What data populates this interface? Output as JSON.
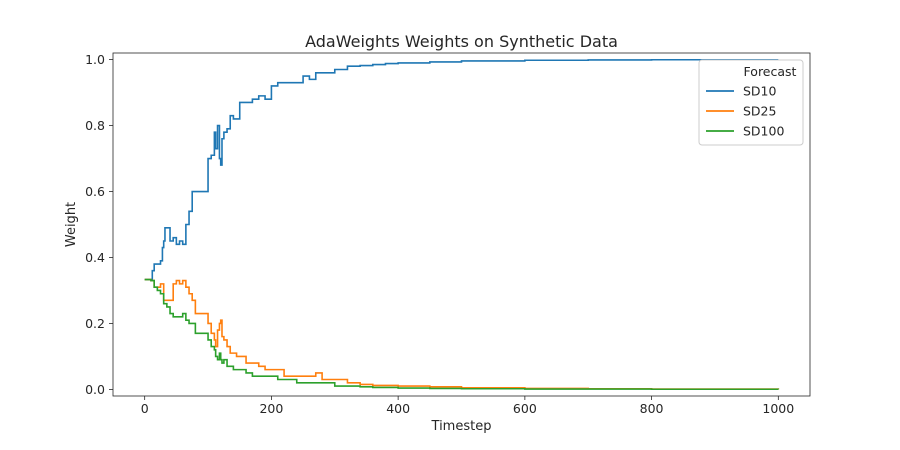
{
  "chart_data": {
    "type": "line",
    "title": "AdaWeights Weights on Synthetic Data",
    "xlabel": "Timestep",
    "ylabel": "Weight",
    "xlim": [
      -50,
      1050
    ],
    "ylim": [
      -0.02,
      1.02
    ],
    "x_ticks": [
      0,
      200,
      400,
      600,
      800,
      1000
    ],
    "y_ticks": [
      0.0,
      0.2,
      0.4,
      0.6,
      0.8,
      1.0
    ],
    "x_tick_labels": [
      "0",
      "200",
      "400",
      "600",
      "800",
      "1000"
    ],
    "y_tick_labels": [
      "0.0",
      "0.2",
      "0.4",
      "0.6",
      "0.8",
      "1.0"
    ],
    "grid": false,
    "legend": {
      "title": "Forecast",
      "placement": "top-right"
    },
    "series": [
      {
        "name": "SD10",
        "color": "#1f77b4",
        "x": [
          0,
          10,
          12,
          15,
          20,
          25,
          28,
          30,
          32,
          35,
          40,
          45,
          50,
          55,
          60,
          65,
          70,
          75,
          78,
          80,
          85,
          90,
          95,
          100,
          105,
          110,
          112,
          115,
          118,
          120,
          122,
          125,
          130,
          135,
          140,
          145,
          150,
          160,
          170,
          180,
          190,
          200,
          210,
          220,
          230,
          240,
          250,
          260,
          270,
          280,
          290,
          300,
          320,
          340,
          360,
          380,
          400,
          450,
          500,
          600,
          700,
          800,
          1000
        ],
        "y": [
          0.333,
          0.33,
          0.36,
          0.38,
          0.38,
          0.39,
          0.43,
          0.45,
          0.49,
          0.49,
          0.45,
          0.46,
          0.44,
          0.45,
          0.44,
          0.5,
          0.54,
          0.6,
          0.6,
          0.6,
          0.6,
          0.6,
          0.6,
          0.7,
          0.71,
          0.78,
          0.73,
          0.8,
          0.7,
          0.68,
          0.76,
          0.78,
          0.79,
          0.83,
          0.82,
          0.82,
          0.87,
          0.87,
          0.88,
          0.89,
          0.88,
          0.92,
          0.93,
          0.93,
          0.93,
          0.93,
          0.95,
          0.94,
          0.96,
          0.96,
          0.96,
          0.97,
          0.98,
          0.982,
          0.985,
          0.988,
          0.99,
          0.993,
          0.996,
          0.998,
          0.999,
          0.9995,
          1.0
        ]
      },
      {
        "name": "SD25",
        "color": "#ff7f0e",
        "x": [
          0,
          10,
          15,
          20,
          25,
          30,
          35,
          40,
          45,
          50,
          55,
          60,
          65,
          70,
          75,
          80,
          85,
          90,
          95,
          100,
          105,
          110,
          112,
          115,
          118,
          120,
          122,
          125,
          130,
          135,
          140,
          145,
          150,
          160,
          170,
          180,
          190,
          200,
          210,
          220,
          240,
          260,
          270,
          280,
          300,
          320,
          340,
          360,
          400,
          450,
          500,
          600,
          700,
          800,
          1000
        ],
        "y": [
          0.333,
          0.33,
          0.31,
          0.31,
          0.32,
          0.27,
          0.27,
          0.27,
          0.32,
          0.33,
          0.32,
          0.33,
          0.31,
          0.29,
          0.27,
          0.23,
          0.23,
          0.23,
          0.23,
          0.2,
          0.17,
          0.15,
          0.13,
          0.18,
          0.2,
          0.21,
          0.16,
          0.15,
          0.13,
          0.11,
          0.11,
          0.1,
          0.1,
          0.08,
          0.08,
          0.07,
          0.06,
          0.06,
          0.06,
          0.04,
          0.04,
          0.04,
          0.05,
          0.03,
          0.03,
          0.02,
          0.015,
          0.012,
          0.01,
          0.008,
          0.005,
          0.003,
          0.002,
          0.001,
          0.0
        ]
      },
      {
        "name": "SD100",
        "color": "#2ca02c",
        "x": [
          0,
          10,
          15,
          20,
          25,
          30,
          35,
          40,
          45,
          50,
          55,
          60,
          65,
          70,
          75,
          80,
          85,
          90,
          95,
          100,
          105,
          110,
          112,
          115,
          118,
          120,
          122,
          125,
          130,
          135,
          140,
          145,
          150,
          160,
          170,
          180,
          190,
          200,
          210,
          220,
          240,
          260,
          280,
          300,
          320,
          340,
          360,
          400,
          450,
          500,
          600,
          700,
          800,
          1000
        ],
        "y": [
          0.333,
          0.33,
          0.31,
          0.3,
          0.29,
          0.26,
          0.25,
          0.23,
          0.22,
          0.22,
          0.22,
          0.23,
          0.21,
          0.2,
          0.2,
          0.17,
          0.17,
          0.17,
          0.17,
          0.15,
          0.13,
          0.12,
          0.1,
          0.09,
          0.11,
          0.09,
          0.08,
          0.09,
          0.07,
          0.07,
          0.06,
          0.06,
          0.06,
          0.05,
          0.04,
          0.04,
          0.04,
          0.04,
          0.03,
          0.03,
          0.02,
          0.02,
          0.02,
          0.01,
          0.01,
          0.008,
          0.006,
          0.004,
          0.003,
          0.002,
          0.001,
          0.001,
          0.0005,
          0.0
        ]
      }
    ]
  }
}
